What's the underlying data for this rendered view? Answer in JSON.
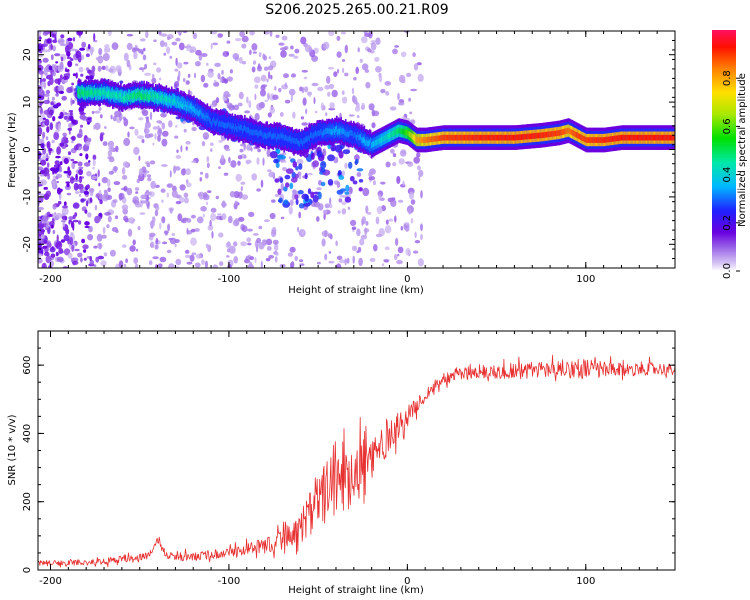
{
  "title": "S206.2025.265.00.21.R09",
  "chart_data": [
    {
      "type": "heatmap",
      "name": "spectrogram",
      "title": "S206.2025.265.00.21.R09",
      "xlabel": "Height of straight line (km)",
      "ylabel": "Frequency (Hz)",
      "xlim": [
        -207,
        150
      ],
      "ylim": [
        -25,
        25
      ],
      "xticks": [
        -200,
        -100,
        0,
        100
      ],
      "yticks": [
        -20,
        -10,
        0,
        10,
        20
      ],
      "xtick_labels": [
        "-200",
        "-100",
        "0",
        "100"
      ],
      "ytick_labels": [
        "-20",
        "-10",
        "0",
        "10",
        "20"
      ],
      "ridge": {
        "x": [
          -185,
          -170,
          -160,
          -150,
          -140,
          -130,
          -120,
          -110,
          -100,
          -90,
          -80,
          -70,
          -60,
          -50,
          -40,
          -30,
          -25,
          -20,
          -10,
          -5,
          0,
          5,
          10,
          20,
          40,
          60,
          75,
          85,
          90,
          95,
          100,
          110,
          120,
          140,
          150
        ],
        "freq": [
          12,
          12,
          11,
          11.5,
          11,
          10,
          8.5,
          6,
          5,
          4,
          3,
          2.5,
          1.5,
          3.5,
          4,
          3,
          2,
          1,
          3,
          4,
          3.5,
          2,
          2,
          2.5,
          2.5,
          2.5,
          3,
          3.5,
          4,
          3,
          2,
          2,
          2.5,
          2.5,
          2.5
        ],
        "amplitude": [
          0.5,
          0.45,
          0.45,
          0.5,
          0.45,
          0.4,
          0.35,
          0.3,
          0.3,
          0.3,
          0.3,
          0.3,
          0.3,
          0.3,
          0.35,
          0.3,
          0.35,
          0.35,
          0.45,
          0.5,
          0.6,
          0.8,
          0.85,
          0.9,
          0.92,
          0.93,
          0.92,
          0.9,
          0.85,
          0.9,
          0.9,
          0.92,
          0.93,
          0.93,
          0.93
        ]
      }
    },
    {
      "type": "colorbar",
      "name": "amplitude-colorbar",
      "label": "Normalized spectral amplitude",
      "range": [
        0,
        1
      ],
      "ticks": [
        0.0,
        0.2,
        0.4,
        0.6,
        0.8
      ],
      "tick_labels": [
        "0.0",
        "0.2",
        "0.4",
        "0.6",
        "0.8"
      ]
    },
    {
      "type": "line",
      "name": "snr",
      "xlabel": "Height of straight line (km)",
      "ylabel": "SNR (10 * v/v)",
      "xlim": [
        -207,
        150
      ],
      "ylim": [
        0,
        700
      ],
      "xticks": [
        -200,
        -100,
        0,
        100
      ],
      "yticks": [
        0,
        200,
        400,
        600
      ],
      "xtick_labels": [
        "-200",
        "-100",
        "0",
        "100"
      ],
      "ytick_labels": [
        "0",
        "200",
        "400",
        "600"
      ],
      "color": "#e83030",
      "series": [
        {
          "name": "SNR",
          "x": [
            -207,
            -200,
            -190,
            -180,
            -170,
            -160,
            -150,
            -145,
            -140,
            -135,
            -130,
            -120,
            -110,
            -100,
            -90,
            -80,
            -70,
            -60,
            -55,
            -50,
            -45,
            -40,
            -35,
            -30,
            -25,
            -20,
            -15,
            -10,
            -5,
            0,
            5,
            10,
            15,
            20,
            25,
            30,
            40,
            50,
            60,
            70,
            80,
            90,
            100,
            110,
            120,
            130,
            140,
            150
          ],
          "values": [
            20,
            20,
            22,
            22,
            25,
            30,
            35,
            45,
            90,
            40,
            40,
            40,
            45,
            50,
            60,
            70,
            90,
            130,
            160,
            200,
            230,
            270,
            280,
            300,
            300,
            320,
            360,
            400,
            420,
            450,
            480,
            510,
            540,
            560,
            570,
            575,
            580,
            580,
            585,
            585,
            590,
            590,
            590,
            585,
            585,
            590,
            590,
            585
          ],
          "noise": [
            8,
            8,
            8,
            8,
            10,
            12,
            12,
            12,
            12,
            12,
            12,
            14,
            14,
            15,
            18,
            22,
            30,
            50,
            70,
            90,
            100,
            110,
            110,
            110,
            100,
            90,
            70,
            50,
            40,
            30,
            22,
            20,
            18,
            18,
            20,
            20,
            20,
            22,
            25,
            25,
            25,
            28,
            30,
            25,
            20,
            20,
            18,
            18
          ]
        }
      ]
    }
  ]
}
